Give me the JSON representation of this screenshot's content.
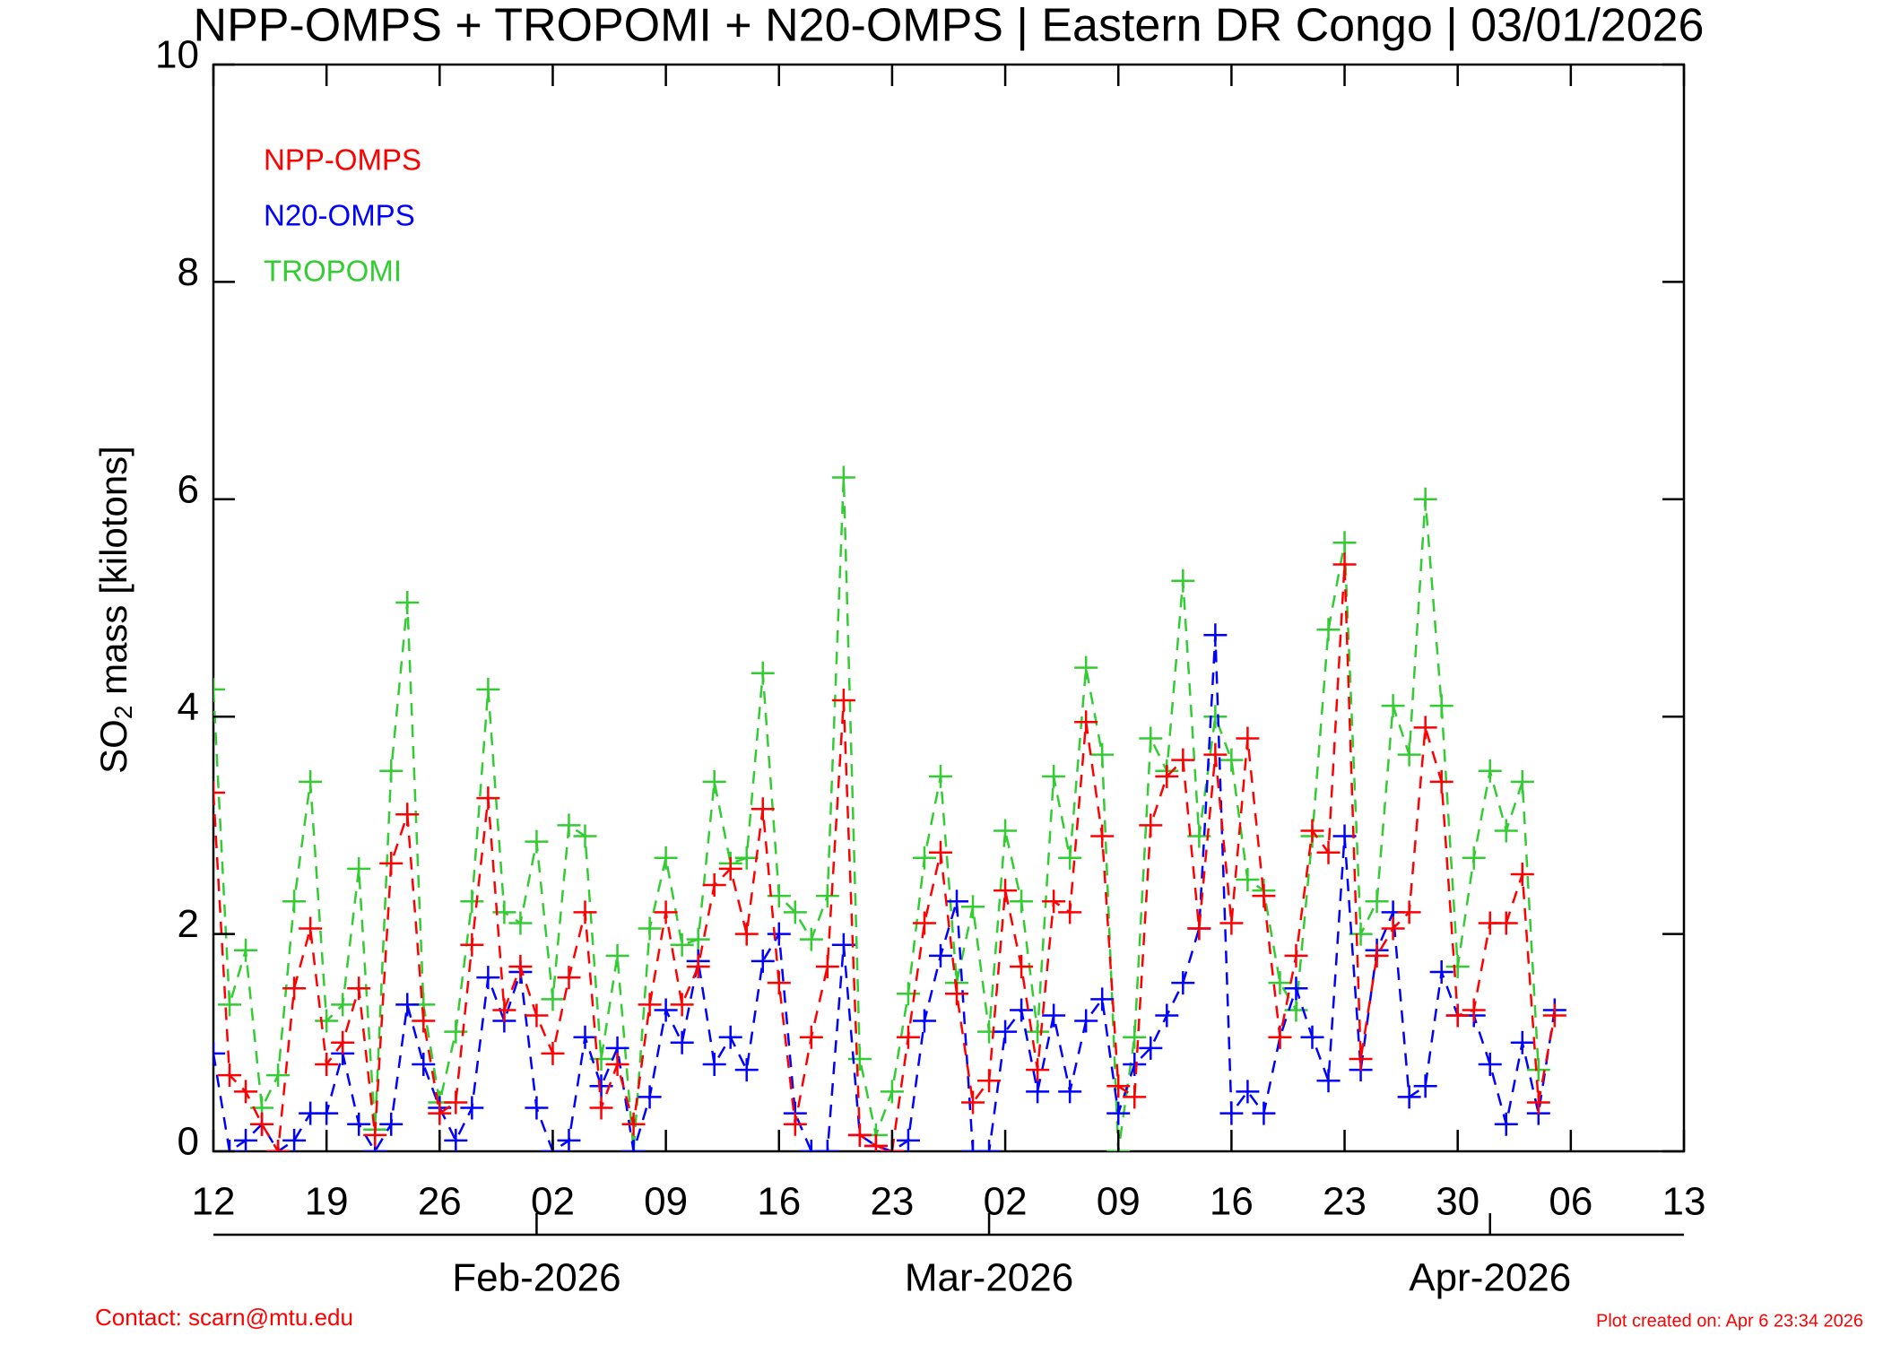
{
  "chart_data": {
    "type": "line",
    "title": "NPP-OMPS + TROPOMI + N20-OMPS | Eastern DR Congo | 03/01/2026",
    "y_label": [
      "SO",
      "2",
      " mass [kilotons]"
    ],
    "legend": "upper left",
    "line_style": "dashed",
    "marker": "plus",
    "x": [
      "2026-01-12",
      "2026-01-13",
      "2026-01-14",
      "2026-01-15",
      "2026-01-16",
      "2026-01-17",
      "2026-01-18",
      "2026-01-19",
      "2026-01-20",
      "2026-01-21",
      "2026-01-22",
      "2026-01-23",
      "2026-01-24",
      "2026-01-25",
      "2026-01-26",
      "2026-01-27",
      "2026-01-28",
      "2026-01-29",
      "2026-01-30",
      "2026-01-31",
      "2026-02-01",
      "2026-02-02",
      "2026-02-03",
      "2026-02-04",
      "2026-02-05",
      "2026-02-06",
      "2026-02-07",
      "2026-02-08",
      "2026-02-09",
      "2026-02-10",
      "2026-02-11",
      "2026-02-12",
      "2026-02-13",
      "2026-02-14",
      "2026-02-15",
      "2026-02-16",
      "2026-02-17",
      "2026-02-18",
      "2026-02-19",
      "2026-02-20",
      "2026-02-21",
      "2026-02-22",
      "2026-02-23",
      "2026-02-24",
      "2026-02-25",
      "2026-02-26",
      "2026-02-27",
      "2026-02-28",
      "2026-03-01",
      "2026-03-02",
      "2026-03-03",
      "2026-03-04",
      "2026-03-05",
      "2026-03-06",
      "2026-03-07",
      "2026-03-08",
      "2026-03-09",
      "2026-03-10",
      "2026-03-11",
      "2026-03-12",
      "2026-03-13",
      "2026-03-14",
      "2026-03-15",
      "2026-03-16",
      "2026-03-17",
      "2026-03-18",
      "2026-03-19",
      "2026-03-20",
      "2026-03-21",
      "2026-03-22",
      "2026-03-23",
      "2026-03-24",
      "2026-03-25",
      "2026-03-26",
      "2026-03-27",
      "2026-03-28",
      "2026-03-29",
      "2026-03-30",
      "2026-03-31",
      "2026-04-01",
      "2026-04-02",
      "2026-04-03",
      "2026-04-04",
      "2026-04-05"
    ],
    "series": [
      {
        "name": "NPP-OMPS",
        "color": "#ff0000",
        "values": [
          3.3,
          0.7,
          0.55,
          0.25,
          0,
          1.5,
          2.05,
          0.8,
          1,
          1.5,
          0.15,
          2.65,
          3.1,
          1.2,
          0.35,
          0.45,
          1.9,
          3.25,
          1.3,
          1.7,
          1.25,
          0.9,
          1.6,
          2.2,
          0.4,
          0.8,
          0.25,
          1.35,
          2.2,
          1.35,
          1.7,
          2.45,
          2.6,
          2,
          3.15,
          1.55,
          0.25,
          1.05,
          1.7,
          4.15,
          0.15,
          0.05,
          0,
          1.05,
          2.1,
          2.75,
          1.45,
          0.45,
          0.65,
          2.4,
          1.7,
          0.75,
          2.3,
          2.2,
          3.95,
          2.9,
          0.6,
          0.5,
          3,
          3.45,
          3.6,
          2.05,
          3.65,
          2.1,
          3.8,
          2.35,
          1.05,
          1.8,
          2.95,
          2.75,
          5.4,
          0.85,
          1.8,
          2.05,
          2.2,
          3.9,
          3.4,
          1.25,
          1.3,
          2.1,
          2.1,
          2.55,
          0.45,
          1.25
        ]
      },
      {
        "name": "N20-OMPS",
        "color": "#0000ff",
        "values": [
          0.9,
          0,
          0.1,
          0.25,
          0,
          0.1,
          0.35,
          0.35,
          0.9,
          0.25,
          0,
          0.25,
          1.35,
          0.8,
          0.4,
          0.1,
          0.4,
          1.6,
          1.2,
          1.65,
          0.4,
          0,
          0.1,
          1.05,
          0.6,
          0.95,
          0,
          0.5,
          1.3,
          1,
          1.75,
          0.8,
          1.05,
          0.75,
          1.75,
          2,
          0.35,
          0,
          0,
          1.9,
          0.15,
          0.05,
          0,
          0.1,
          1.2,
          1.8,
          2.3,
          0,
          0,
          1.1,
          1.3,
          0.55,
          1.25,
          0.55,
          1.2,
          1.4,
          0.35,
          0.8,
          0.95,
          1.25,
          1.55,
          2.05,
          4.75,
          0.35,
          0.55,
          0.35,
          1.05,
          1.5,
          1.05,
          0.65,
          2.9,
          0.75,
          1.85,
          2.2,
          0.5,
          0.6,
          1.65,
          1.25,
          1.25,
          0.8,
          0.25,
          1,
          0.35,
          1.3
        ]
      },
      {
        "name": "TROPOMI",
        "color": "#33cc33",
        "values": [
          4.25,
          1.35,
          1.85,
          0.4,
          0.7,
          2.3,
          3.4,
          1.2,
          1.35,
          2.6,
          0.2,
          3.5,
          5.05,
          1.35,
          0.45,
          1.1,
          2.3,
          4.25,
          2.2,
          2.1,
          2.85,
          1.4,
          3,
          2.9,
          0.85,
          1.8,
          0,
          2.05,
          2.7,
          1.9,
          1.95,
          3.4,
          2.65,
          2.7,
          4.4,
          2.35,
          2.2,
          1.95,
          2.35,
          6.2,
          0.85,
          0.15,
          0.55,
          1.45,
          2.7,
          3.45,
          1.55,
          2.25,
          1.1,
          2.95,
          2.3,
          1.1,
          3.45,
          2.7,
          4.45,
          3.65,
          0,
          1.05,
          3.8,
          3.5,
          5.25,
          2.9,
          4,
          3.6,
          2.5,
          2.4,
          1.55,
          1.3,
          2.9,
          4.8,
          5.6,
          2,
          2.3,
          4.1,
          3.65,
          6,
          4.1,
          1.7,
          2.7,
          3.5,
          2.95,
          3.4,
          0.75,
          null
        ]
      }
    ],
    "xlim": [
      "2026-01-12",
      "2026-04-13"
    ],
    "xticks": [
      {
        "value": "2026-01-12",
        "label": "12"
      },
      {
        "value": "2026-01-19",
        "label": "19"
      },
      {
        "value": "2026-01-26",
        "label": "26"
      },
      {
        "value": "2026-02-02",
        "label": "02"
      },
      {
        "value": "2026-02-09",
        "label": "09"
      },
      {
        "value": "2026-02-16",
        "label": "16"
      },
      {
        "value": "2026-02-23",
        "label": "23"
      },
      {
        "value": "2026-03-02",
        "label": "02"
      },
      {
        "value": "2026-03-09",
        "label": "09"
      },
      {
        "value": "2026-03-16",
        "label": "16"
      },
      {
        "value": "2026-03-23",
        "label": "23"
      },
      {
        "value": "2026-03-30",
        "label": "30"
      },
      {
        "value": "2026-04-06",
        "label": "06"
      },
      {
        "value": "2026-04-13",
        "label": "13"
      }
    ],
    "month_ticks": [
      {
        "value": "2026-02-01",
        "label": "Feb-2026"
      },
      {
        "value": "2026-03-01",
        "label": "Mar-2026"
      },
      {
        "value": "2026-04-01",
        "label": "Apr-2026"
      }
    ],
    "ylim": [
      0,
      10
    ],
    "yticks": [
      0,
      2,
      4,
      6,
      8,
      10
    ],
    "contact": "Contact: scarn@mtu.edu",
    "created": "Plot created on: Apr  6 23:34 2026"
  }
}
